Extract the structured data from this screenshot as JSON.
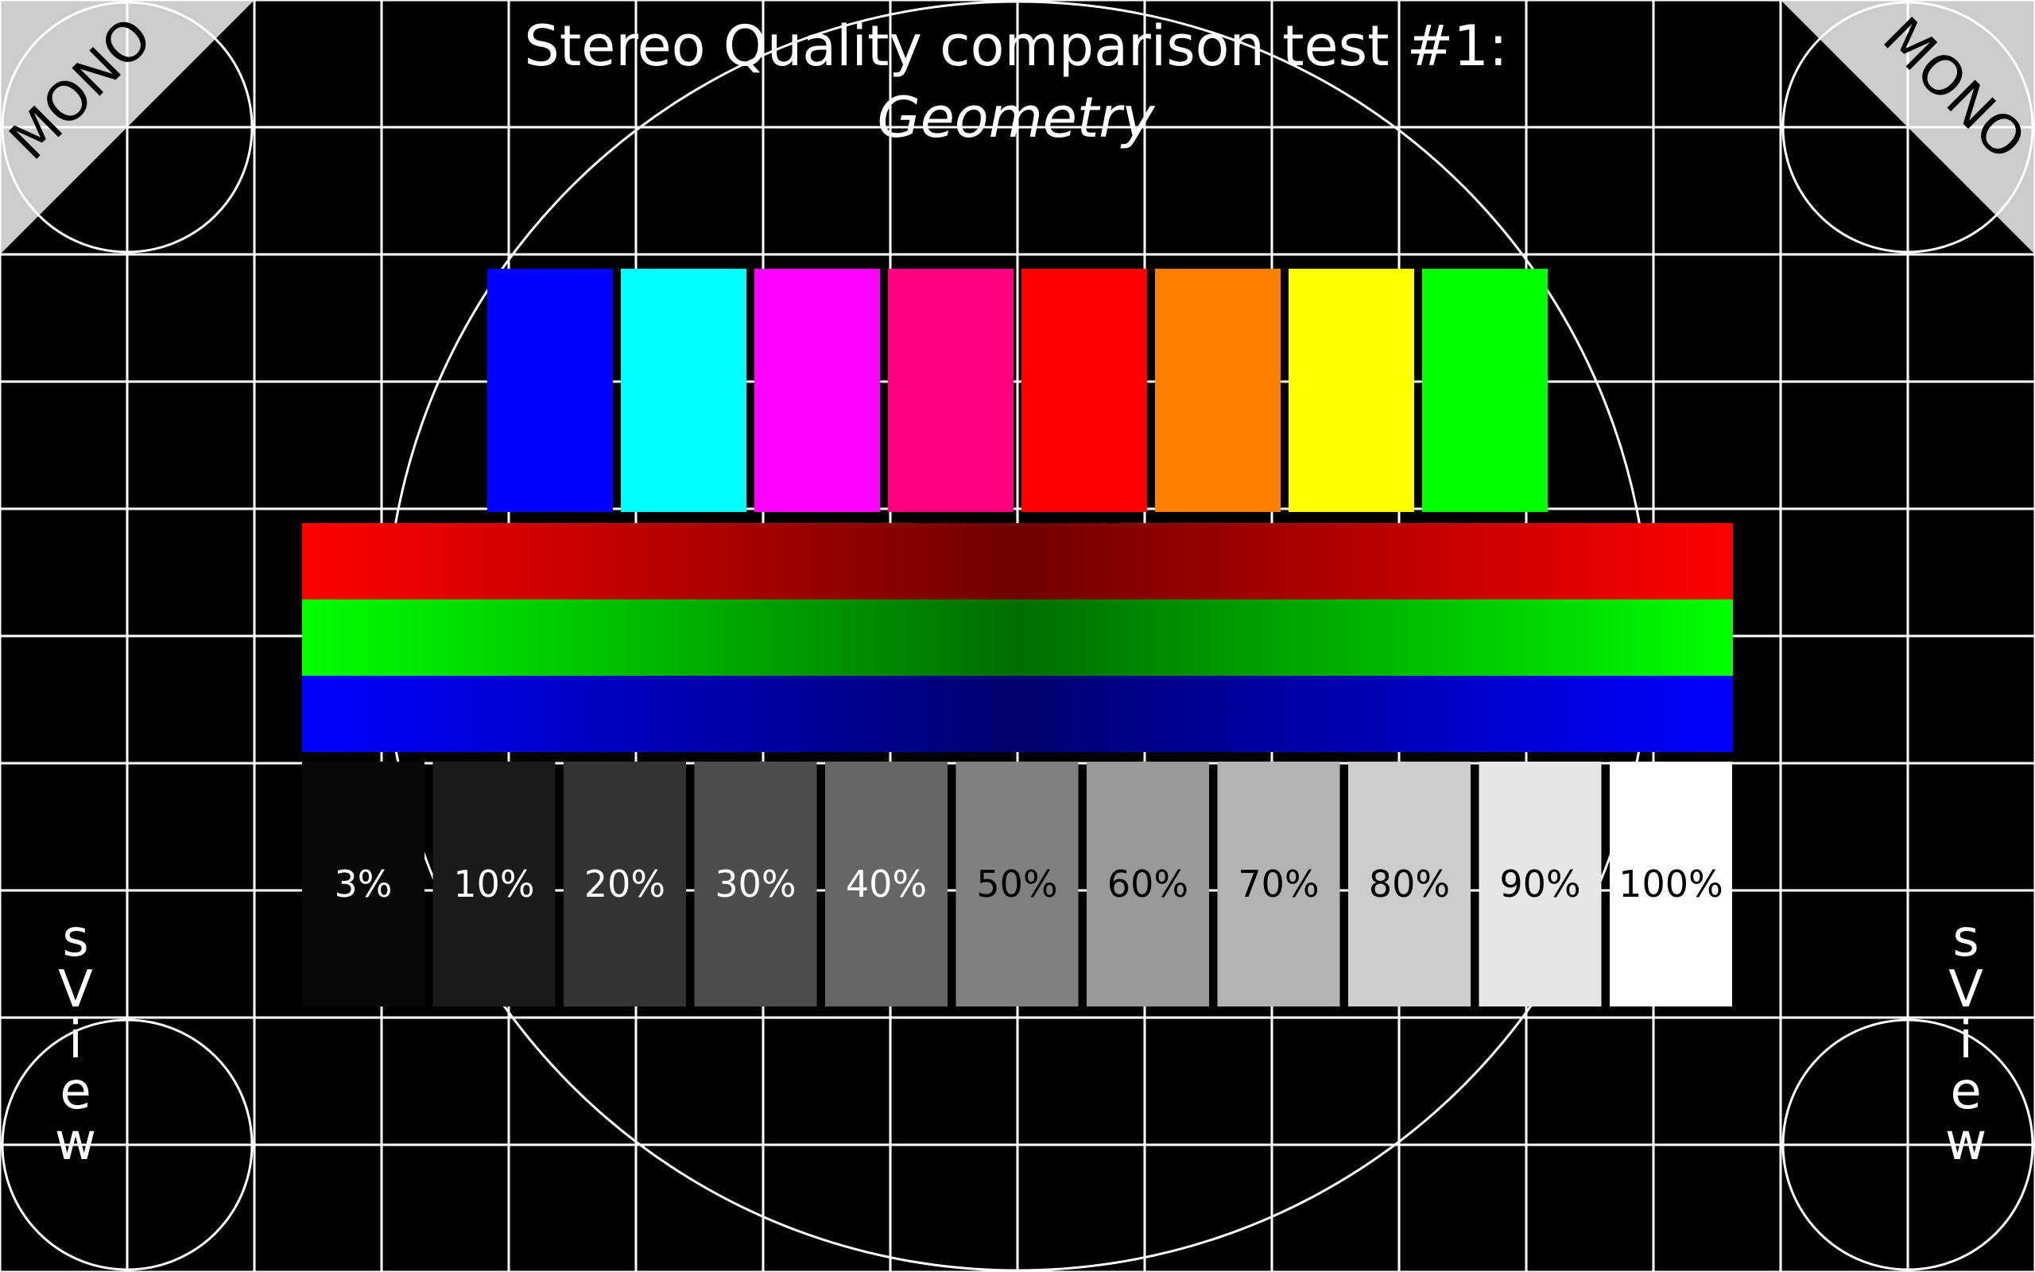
{
  "title": {
    "line1": "Stereo Quality comparison test #1:",
    "line2": "Geometry"
  },
  "corner_labels": {
    "top_left": "MONO",
    "top_right": "MONO"
  },
  "side_labels": {
    "left": [
      "s",
      "V",
      "i",
      "e",
      "w"
    ],
    "right": [
      "s",
      "V",
      "i",
      "e",
      "w"
    ]
  },
  "colors": {
    "background": "#000000",
    "grid": "#ffffff",
    "corner_triangle": "#cccccc"
  },
  "color_bars": [
    {
      "name": "blue",
      "color": "#0000ff"
    },
    {
      "name": "cyan",
      "color": "#00ffff"
    },
    {
      "name": "magenta",
      "color": "#ff00ff"
    },
    {
      "name": "pink",
      "color": "#ff0080"
    },
    {
      "name": "red",
      "color": "#ff0000"
    },
    {
      "name": "orange",
      "color": "#ff8000"
    },
    {
      "name": "yellow",
      "color": "#ffff00"
    },
    {
      "name": "green",
      "color": "#00ff00"
    }
  ],
  "gradient_bands": [
    {
      "name": "red",
      "edge": "#ff0000",
      "center": "#700000"
    },
    {
      "name": "green",
      "edge": "#00ff00",
      "center": "#006e00"
    },
    {
      "name": "blue",
      "edge": "#0000ff",
      "center": "#00006e"
    }
  ],
  "gray_steps": [
    {
      "label": "3%",
      "fill": "#080808",
      "text": "#ffffff"
    },
    {
      "label": "10%",
      "fill": "#1a1a1a",
      "text": "#ffffff"
    },
    {
      "label": "20%",
      "fill": "#333333",
      "text": "#ffffff"
    },
    {
      "label": "30%",
      "fill": "#4d4d4d",
      "text": "#ffffff"
    },
    {
      "label": "40%",
      "fill": "#666666",
      "text": "#ffffff"
    },
    {
      "label": "50%",
      "fill": "#808080",
      "text": "#000000"
    },
    {
      "label": "60%",
      "fill": "#999999",
      "text": "#000000"
    },
    {
      "label": "70%",
      "fill": "#b3b3b3",
      "text": "#000000"
    },
    {
      "label": "80%",
      "fill": "#cccccc",
      "text": "#000000"
    },
    {
      "label": "90%",
      "fill": "#e6e6e6",
      "text": "#000000"
    },
    {
      "label": "100%",
      "fill": "#ffffff",
      "text": "#000000"
    }
  ]
}
